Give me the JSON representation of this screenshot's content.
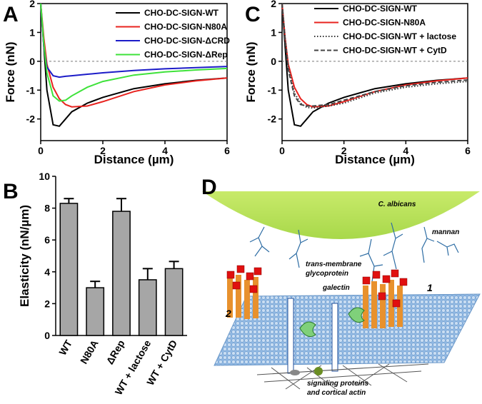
{
  "chart_data": [
    {
      "panel": "A",
      "type": "line",
      "xlabel": "Distance (µm)",
      "ylabel": "Force (nN)",
      "x": [
        0,
        0.1,
        0.2,
        0.4,
        0.6,
        0.8,
        1,
        1.5,
        2,
        3,
        4,
        5,
        6
      ],
      "series": [
        {
          "name": "CHO-DC-SIGN-WT",
          "color": "#000000",
          "dash": "solid",
          "values": [
            2,
            0.5,
            -1.0,
            -2.2,
            -2.25,
            -2.0,
            -1.75,
            -1.45,
            -1.25,
            -0.95,
            -0.78,
            -0.66,
            -0.58
          ]
        },
        {
          "name": "CHO-DC-SIGN-N80A",
          "color": "#e8231f",
          "dash": "solid",
          "values": [
            2,
            0.8,
            -0.1,
            -0.9,
            -1.3,
            -1.5,
            -1.58,
            -1.55,
            -1.4,
            -1.05,
            -0.82,
            -0.68,
            -0.58
          ]
        },
        {
          "name": "CHO-DC-SIGN-ΔCRD",
          "color": "#1c1cc8",
          "dash": "solid",
          "values": [
            2,
            0.5,
            -0.2,
            -0.5,
            -0.55,
            -0.52,
            -0.5,
            -0.45,
            -0.4,
            -0.32,
            -0.26,
            -0.22,
            -0.18
          ]
        },
        {
          "name": "CHO-DC-SIGN-ΔRep",
          "color": "#3ee23a",
          "dash": "solid",
          "values": [
            2,
            0.6,
            -0.4,
            -1.2,
            -1.38,
            -1.35,
            -1.2,
            -0.9,
            -0.7,
            -0.48,
            -0.37,
            -0.3,
            -0.25
          ]
        }
      ],
      "xlim": [
        0,
        6
      ],
      "ylim": [
        -2.75,
        2
      ],
      "xticks": [
        0,
        2,
        4,
        6
      ],
      "yticks": [
        -2,
        -1,
        0,
        1,
        2
      ],
      "reference_line": 0
    },
    {
      "panel": "C",
      "type": "line",
      "xlabel": "Distance (µm)",
      "ylabel": "Force (nN)",
      "x": [
        0,
        0.1,
        0.2,
        0.4,
        0.6,
        0.8,
        1,
        1.5,
        2,
        3,
        4,
        5,
        6
      ],
      "series": [
        {
          "name": "CHO-DC-SIGN-WT",
          "color": "#000000",
          "dash": "solid",
          "values": [
            2,
            0.5,
            -1.0,
            -2.2,
            -2.25,
            -2.0,
            -1.75,
            -1.45,
            -1.25,
            -0.95,
            -0.78,
            -0.66,
            -0.58
          ]
        },
        {
          "name": "CHO-DC-SIGN-N80A",
          "color": "#e8231f",
          "dash": "solid",
          "values": [
            2,
            0.8,
            -0.1,
            -0.9,
            -1.3,
            -1.5,
            -1.58,
            -1.55,
            -1.4,
            -1.05,
            -0.82,
            -0.68,
            -0.58
          ]
        },
        {
          "name": "CHO-DC-SIGN-WT + lactose",
          "color": "#333333",
          "dash": "dotted",
          "values": [
            2,
            0.8,
            -0.2,
            -1.1,
            -1.45,
            -1.6,
            -1.62,
            -1.55,
            -1.45,
            -1.1,
            -0.9,
            -0.78,
            -0.7
          ]
        },
        {
          "name": "CHO-DC-SIGN-WT + CytD",
          "color": "#444444",
          "dash": "dashed",
          "values": [
            2,
            0.7,
            -0.3,
            -1.2,
            -1.5,
            -1.55,
            -1.55,
            -1.5,
            -1.35,
            -1.05,
            -0.85,
            -0.73,
            -0.65
          ]
        }
      ],
      "xlim": [
        0,
        6
      ],
      "ylim": [
        -2.75,
        2
      ],
      "xticks": [
        0,
        2,
        4,
        6
      ],
      "yticks": [
        -2,
        -1,
        0,
        1,
        2
      ],
      "reference_line": 0
    },
    {
      "panel": "B",
      "type": "bar",
      "ylabel": "Elasticity (nN/µm)",
      "categories": [
        "WT",
        "N80A",
        "ΔRep",
        "WT + lactose",
        "WT + CytD"
      ],
      "values": [
        8.3,
        3.0,
        7.8,
        3.5,
        4.2
      ],
      "errors": [
        0.3,
        0.4,
        0.8,
        0.7,
        0.45
      ],
      "color": "#a6a6a6",
      "ylim": [
        0,
        10
      ],
      "yticks": [
        0,
        2,
        4,
        6,
        8,
        10
      ]
    }
  ],
  "diagram": {
    "panel": "D",
    "organism": "C. albicans",
    "mannan": "mannan",
    "glycoprotein": [
      "trans-membrane",
      "glycoprotein"
    ],
    "galectin": "galectin",
    "cluster_labels": [
      "1",
      "2"
    ],
    "signaling": [
      "signaling proteins",
      "and cortical actin"
    ]
  }
}
